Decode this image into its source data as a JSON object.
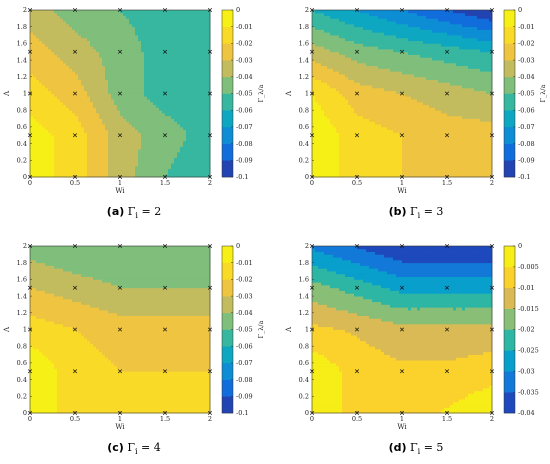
{
  "panels": [
    {
      "caption_letter": "(a)",
      "caption_text": "Γ",
      "caption_sub": "i",
      "caption_value": " = 2",
      "chart_data": {
        "type": "heatmap",
        "xlabel": "Wi",
        "ylabel": "Λ",
        "colorbar_label": "Γ_λ/a",
        "x": [
          0,
          0.5,
          1,
          1.5,
          2
        ],
        "y": [
          0,
          0.5,
          1,
          1.5,
          2
        ],
        "xticks": [
          "0",
          "0.5",
          "1",
          "1.5",
          "2"
        ],
        "yticks": [
          "0",
          "0.2",
          "0.4",
          "0.6",
          "0.8",
          "1",
          "1.2",
          "1.4",
          "1.6",
          "1.8",
          "2"
        ],
        "z": [
          [
            -0.005,
            -0.015,
            -0.035,
            -0.05,
            -0.06
          ],
          [
            -0.005,
            -0.015,
            -0.035,
            -0.045,
            -0.055
          ],
          [
            -0.015,
            -0.025,
            -0.045,
            -0.055,
            -0.055
          ],
          [
            -0.025,
            -0.035,
            -0.045,
            -0.055,
            -0.055
          ],
          [
            -0.035,
            -0.045,
            -0.05,
            -0.055,
            -0.055
          ]
        ],
        "clim": [
          -0.1,
          0
        ],
        "colorbar_ticks": [
          "0",
          "-0.01",
          "-0.02",
          "-0.03",
          "-0.04",
          "-0.05",
          "-0.06",
          "-0.07",
          "-0.08",
          "-0.09",
          "-0.1"
        ],
        "colormap": "parula"
      }
    },
    {
      "caption_letter": "(b)",
      "caption_text": "Γ",
      "caption_sub": "i",
      "caption_value": " = 3",
      "chart_data": {
        "type": "heatmap",
        "xlabel": "Wi",
        "ylabel": "Λ",
        "colorbar_label": "Γ_λ/a",
        "x": [
          0,
          0.5,
          1,
          1.5,
          2
        ],
        "y": [
          0,
          0.5,
          1,
          1.5,
          2
        ],
        "xticks": [
          "0",
          "0.5",
          "1",
          "1.5",
          "2"
        ],
        "yticks": [
          "0",
          "0.2",
          "0.4",
          "0.6",
          "0.8",
          "1",
          "1.2",
          "1.4",
          "1.6",
          "1.8",
          "2"
        ],
        "z": [
          [
            -0.002,
            -0.015,
            -0.02,
            -0.02,
            -0.02
          ],
          [
            -0.002,
            -0.015,
            -0.02,
            -0.025,
            -0.025
          ],
          [
            -0.01,
            -0.025,
            -0.03,
            -0.035,
            -0.04
          ],
          [
            -0.035,
            -0.045,
            -0.05,
            -0.055,
            -0.06
          ],
          [
            -0.06,
            -0.07,
            -0.08,
            -0.09,
            -0.1
          ]
        ],
        "clim": [
          -0.1,
          0
        ],
        "colorbar_ticks": [
          "0",
          "-0.01",
          "-0.02",
          "-0.03",
          "-0.04",
          "-0.05",
          "-0.06",
          "-0.07",
          "-0.08",
          "-0.09",
          "-0.1"
        ],
        "colormap": "parula"
      }
    },
    {
      "caption_letter": "(c)",
      "caption_text": "Γ",
      "caption_sub": "i",
      "caption_value": " = 4",
      "chart_data": {
        "type": "heatmap",
        "xlabel": "Wi",
        "ylabel": "Λ",
        "colorbar_label": "Γ_λ/a",
        "x": [
          0,
          0.5,
          1,
          1.5,
          2
        ],
        "y": [
          0,
          0.5,
          1,
          1.5,
          2
        ],
        "xticks": [
          "0",
          "0.5",
          "1",
          "1.5",
          "2"
        ],
        "yticks": [
          "0",
          "0.2",
          "0.4",
          "0.6",
          "0.8",
          "1",
          "1.2",
          "1.4",
          "1.6",
          "1.8",
          "2"
        ],
        "z": [
          [
            -0.002,
            -0.015,
            -0.015,
            -0.015,
            -0.015
          ],
          [
            -0.002,
            -0.015,
            -0.02,
            -0.02,
            -0.02
          ],
          [
            -0.015,
            -0.02,
            -0.025,
            -0.025,
            -0.025
          ],
          [
            -0.03,
            -0.035,
            -0.04,
            -0.04,
            -0.04
          ],
          [
            -0.045,
            -0.05,
            -0.05,
            -0.05,
            -0.05
          ]
        ],
        "clim": [
          -0.1,
          0
        ],
        "colorbar_ticks": [
          "0",
          "-0.01",
          "-0.02",
          "-0.03",
          "-0.04",
          "-0.05",
          "-0.06",
          "-0.07",
          "-0.08",
          "-0.09",
          "-0.1"
        ],
        "colormap": "parula"
      }
    },
    {
      "caption_letter": "(d)",
      "caption_text": "Γ",
      "caption_sub": "i",
      "caption_value": " = 5",
      "chart_data": {
        "type": "heatmap",
        "xlabel": "Wi",
        "ylabel": "Λ",
        "colorbar_label": "",
        "x": [
          0,
          0.5,
          1,
          1.5,
          2
        ],
        "y": [
          0,
          0.5,
          1,
          1.5,
          2
        ],
        "xticks": [
          "0",
          "0.5",
          "1",
          "1.5",
          "2"
        ],
        "yticks": [
          "0",
          "0.2",
          "0.4",
          "0.6",
          "0.8",
          "1",
          "1.2",
          "1.4",
          "1.6",
          "1.8",
          "2"
        ],
        "z": [
          [
            -0.001,
            -0.008,
            -0.008,
            -0.005,
            -0.001
          ],
          [
            -0.001,
            -0.008,
            -0.01,
            -0.01,
            -0.008
          ],
          [
            -0.01,
            -0.012,
            -0.015,
            -0.015,
            -0.015
          ],
          [
            -0.02,
            -0.025,
            -0.03,
            -0.03,
            -0.03
          ],
          [
            -0.035,
            -0.04,
            -0.045,
            -0.045,
            -0.045
          ]
        ],
        "clim": [
          -0.045,
          0
        ],
        "colorbar_ticks": [
          "0",
          "-0.005",
          "-0.01",
          "-0.015",
          "-0.02",
          "-0.025",
          "-0.03",
          "-0.035",
          "-0.04"
        ],
        "colormap": "parula"
      }
    }
  ]
}
